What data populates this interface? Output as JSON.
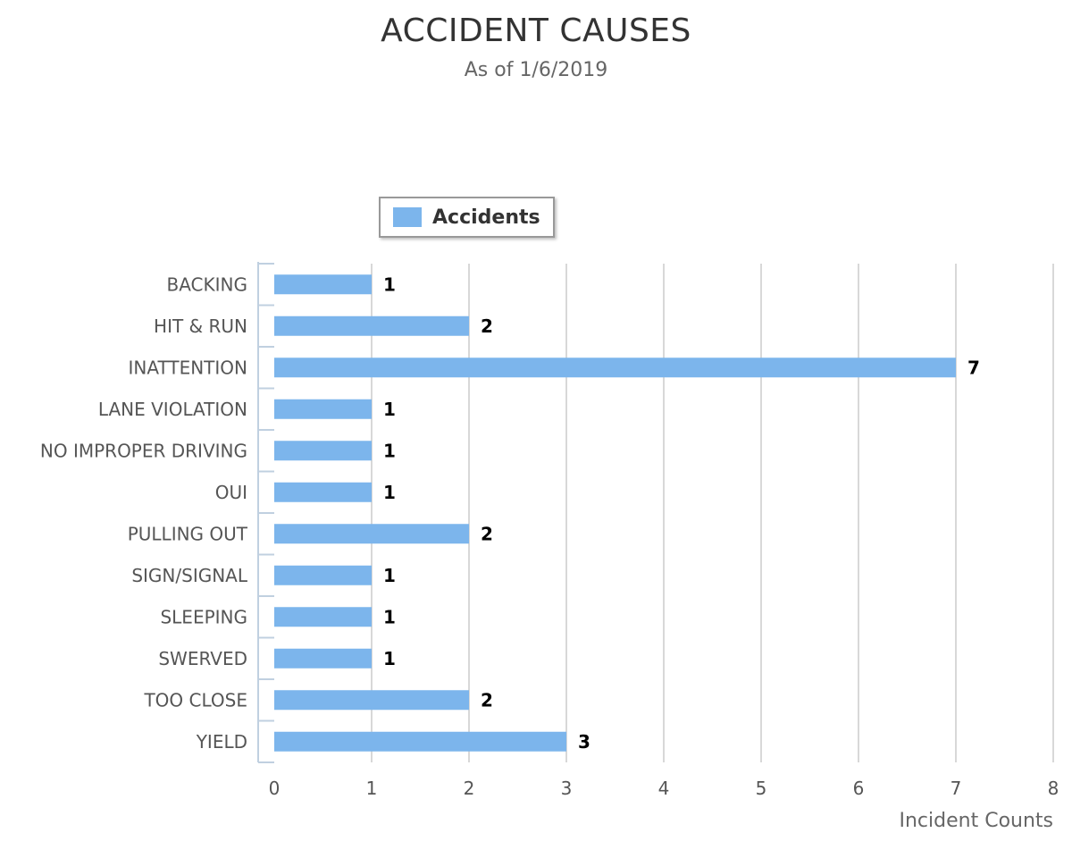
{
  "chart_data": {
    "type": "bar",
    "orientation": "horizontal",
    "title": "ACCIDENT CAUSES",
    "subtitle": "As of 1/6/2019",
    "categories": [
      "BACKING",
      "HIT & RUN",
      "INATTENTION",
      "LANE VIOLATION",
      "NO IMPROPER DRIVING",
      "OUI",
      "PULLING OUT",
      "SIGN/SIGNAL",
      "SLEEPING",
      "SWERVED",
      "TOO CLOSE",
      "YIELD"
    ],
    "series": [
      {
        "name": "Accidents",
        "color": "#7cb5ec",
        "values": [
          1,
          2,
          7,
          1,
          1,
          1,
          2,
          1,
          1,
          1,
          2,
          3
        ]
      }
    ],
    "xlabel": "Incident Counts",
    "ylabel": "",
    "xlim": [
      0,
      8
    ],
    "x_ticks": [
      "0",
      "1",
      "2",
      "3",
      "4",
      "5",
      "6",
      "7",
      "8"
    ],
    "grid": true,
    "legend_position": "top-left",
    "data_labels": true
  }
}
